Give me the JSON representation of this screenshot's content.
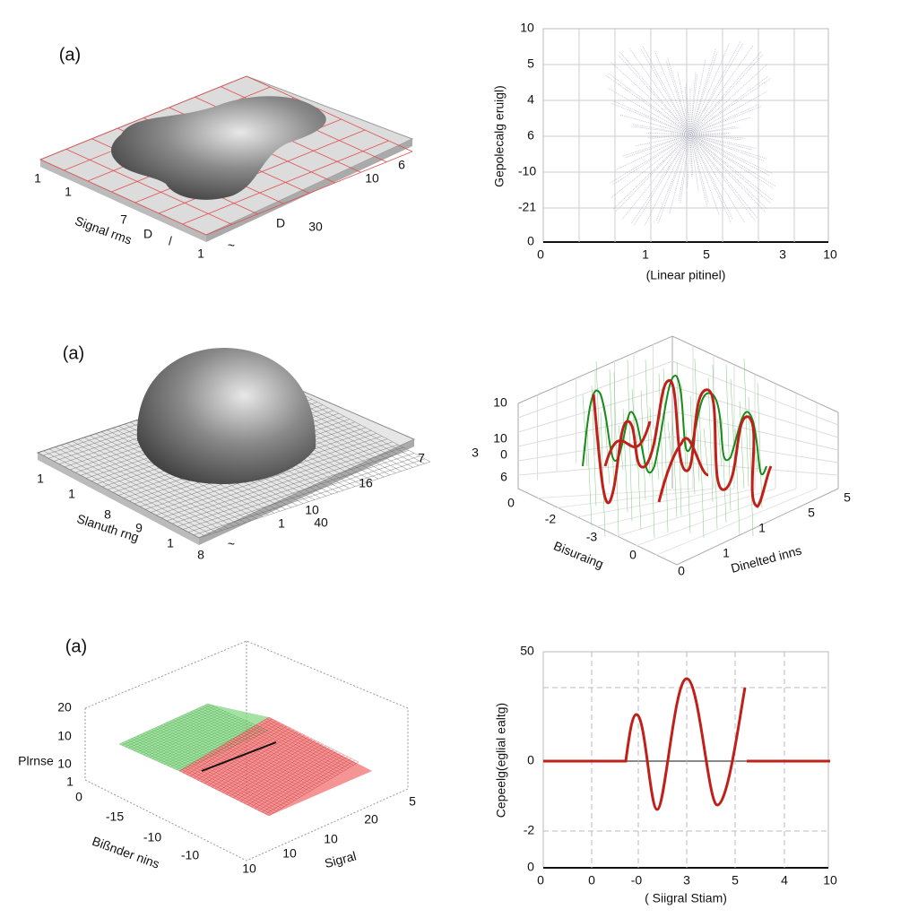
{
  "panels": [
    {
      "label": "(a)",
      "axis_labels": [
        "Signal rms"
      ],
      "ticks": [
        "1",
        "1",
        "7",
        "D",
        "/",
        "1",
        "~",
        "D",
        "30",
        "10",
        "6"
      ]
    },
    {
      "axis_labels": [
        "Gepolecalg eruigl)",
        "(Linear pitinel)"
      ],
      "ticks": [
        "10",
        "5",
        "4",
        "6",
        "-10",
        "-21",
        "0",
        "0",
        "1",
        "5",
        "3",
        "10"
      ]
    },
    {
      "label": "(a)",
      "axis_labels": [
        "Slanuth rng"
      ],
      "ticks": [
        "1",
        "1",
        "8",
        "9",
        "1",
        "8",
        "~",
        "1",
        "10",
        "40",
        "16",
        "7"
      ]
    },
    {
      "axis_labels": [
        "Bisuraing",
        "Dinelted inns"
      ],
      "ticks": [
        "10",
        "3",
        "10",
        "0",
        "6",
        "0",
        "-2",
        "-3",
        "0",
        "0",
        "1",
        "1",
        "5",
        "5"
      ]
    },
    {
      "label": "(a)",
      "axis_labels": [
        "Plrnse",
        "Bißnder nins",
        "Sigral"
      ],
      "ticks": [
        "20",
        "10",
        "10",
        "1",
        "0",
        "-15",
        "-10",
        "-10",
        "10",
        "10",
        "10",
        "20",
        "5"
      ]
    },
    {
      "axis_labels": [
        "Cepeelg(eglial ealtg)",
        "( Siigral Stiam)"
      ],
      "ticks": [
        "50",
        "0",
        "-2",
        "0",
        "0",
        "0",
        "-0",
        "3",
        "5",
        "4",
        "10"
      ]
    }
  ]
}
